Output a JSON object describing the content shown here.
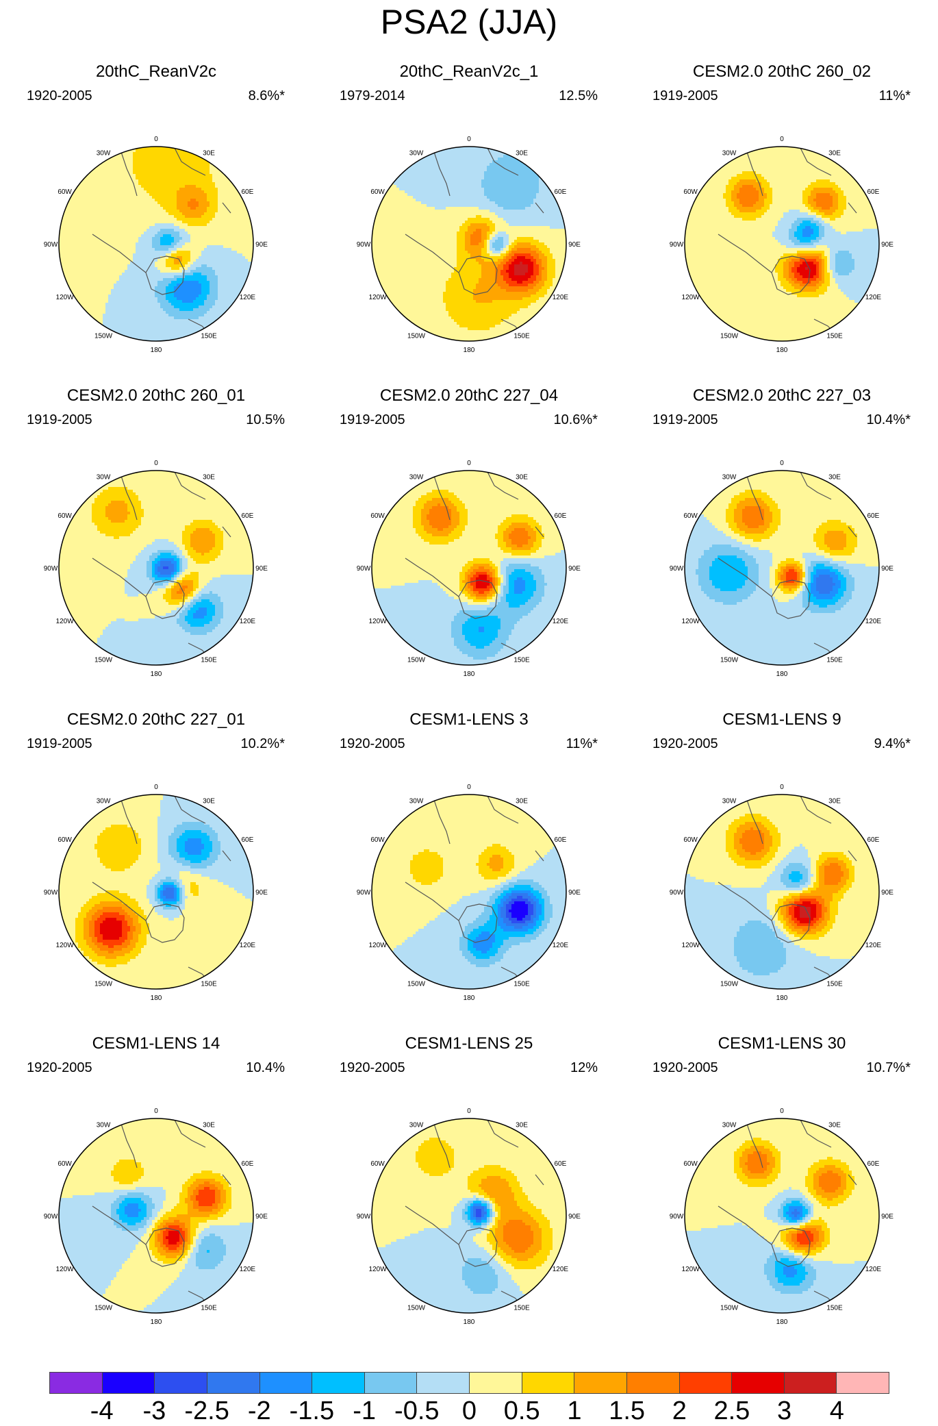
{
  "title": "PSA2 (JJA)",
  "longitude_labels": [
    "0",
    "30E",
    "60E",
    "90E",
    "120E",
    "150E",
    "180",
    "150W",
    "120W",
    "90W",
    "60W",
    "30W"
  ],
  "panels": [
    {
      "title": "20thC_ReanV2c",
      "period": "1920-2005",
      "pct": "8.6%*",
      "blobs": [
        [
          -2.5,
          100,
          0.15,
          0.13
        ],
        [
          3,
          125,
          0.25,
          0.13
        ],
        [
          -2,
          145,
          0.55,
          0.2
        ],
        [
          1.2,
          45,
          0.55,
          0.15
        ],
        [
          0.8,
          10,
          0.85,
          0.4
        ]
      ]
    },
    {
      "title": "20thC_ReanV2c_1",
      "period": "1979-2014",
      "pct": "12.5%",
      "blobs": [
        [
          3,
          115,
          0.6,
          0.18
        ],
        [
          -2.5,
          92,
          0.28,
          0.1
        ],
        [
          2,
          65,
          0.15,
          0.15
        ],
        [
          -1,
          35,
          0.75,
          0.25
        ],
        [
          1,
          170,
          0.55,
          0.3
        ]
      ]
    },
    {
      "title": "CESM2.0 20thC 260_02",
      "period": "1919-2005",
      "pct": "11%*",
      "blobs": [
        [
          3.5,
          130,
          0.35,
          0.17
        ],
        [
          -1.8,
          95,
          0.22,
          0.13
        ],
        [
          2,
          -35,
          0.6,
          0.15
        ],
        [
          2,
          45,
          0.6,
          0.14
        ],
        [
          -1.5,
          60,
          0.35,
          0.12
        ],
        [
          -1.5,
          110,
          0.6,
          0.13
        ]
      ]
    },
    {
      "title": "CESM2.0 20thC 260_01",
      "period": "1919-2005",
      "pct": "10.5%",
      "blobs": [
        [
          -3,
          100,
          0.12,
          0.12
        ],
        [
          2.5,
          130,
          0.35,
          0.14
        ],
        [
          -2,
          135,
          0.6,
          0.16
        ],
        [
          1.5,
          60,
          0.55,
          0.15
        ],
        [
          1.2,
          -35,
          0.7,
          0.2
        ]
      ]
    },
    {
      "title": "CESM2.0 20thC 227_04",
      "period": "1919-2005",
      "pct": "10.6%*",
      "blobs": [
        [
          3.5,
          135,
          0.22,
          0.14
        ],
        [
          -1.8,
          110,
          0.5,
          0.2
        ],
        [
          -1.5,
          170,
          0.65,
          0.2
        ],
        [
          2,
          60,
          0.6,
          0.15
        ],
        [
          2,
          -30,
          0.6,
          0.17
        ]
      ]
    },
    {
      "title": "CESM2.0 20thC 227_03",
      "period": "1919-2005",
      "pct": "10.4%*",
      "blobs": [
        [
          3,
          130,
          0.15,
          0.11
        ],
        [
          -2.5,
          110,
          0.45,
          0.18
        ],
        [
          -1.5,
          -95,
          0.55,
          0.22
        ],
        [
          1.5,
          65,
          0.6,
          0.16
        ],
        [
          2,
          -30,
          0.6,
          0.17
        ]
      ]
    },
    {
      "title": "CESM2.0 20thC 227_01",
      "period": "1919-2005",
      "pct": "10.2%*",
      "blobs": [
        [
          -3,
          95,
          0.15,
          0.1
        ],
        [
          3,
          -130,
          0.6,
          0.2
        ],
        [
          -1.8,
          40,
          0.6,
          0.17
        ],
        [
          1,
          80,
          0.3,
          0.15
        ],
        [
          1,
          -40,
          0.6,
          0.2
        ]
      ]
    },
    {
      "title": "CESM1-LENS 3",
      "period": "1920-2005",
      "pct": "11%*",
      "blobs": [
        [
          -3.5,
          110,
          0.55,
          0.17
        ],
        [
          -1.8,
          165,
          0.55,
          0.15
        ],
        [
          1.2,
          45,
          0.4,
          0.15
        ],
        [
          1,
          -60,
          0.5,
          0.15
        ]
      ]
    },
    {
      "title": "CESM1-LENS 9",
      "period": "1920-2005",
      "pct": "9.4%*",
      "blobs": [
        [
          3.5,
          130,
          0.3,
          0.17
        ],
        [
          -1.8,
          60,
          0.2,
          0.14
        ],
        [
          2,
          -30,
          0.6,
          0.17
        ],
        [
          2,
          70,
          0.55,
          0.14
        ],
        [
          -1,
          -160,
          0.6,
          0.25
        ]
      ]
    },
    {
      "title": "CESM1-LENS 14",
      "period": "1920-2005",
      "pct": "10.4%",
      "blobs": [
        [
          3,
          140,
          0.3,
          0.15
        ],
        [
          -1.8,
          -75,
          0.25,
          0.15
        ],
        [
          2.5,
          70,
          0.55,
          0.15
        ],
        [
          -1.2,
          125,
          0.6,
          0.17
        ],
        [
          1,
          -35,
          0.5,
          0.15
        ]
      ]
    },
    {
      "title": "CESM1-LENS 25",
      "period": "1920-2005",
      "pct": "12%",
      "blobs": [
        [
          -3.5,
          70,
          0.12,
          0.1
        ],
        [
          2,
          115,
          0.55,
          0.22
        ],
        [
          1.5,
          45,
          0.35,
          0.18
        ],
        [
          -1,
          165,
          0.6,
          0.2
        ],
        [
          0.8,
          -30,
          0.7,
          0.2
        ]
      ]
    },
    {
      "title": "CESM1-LENS 30",
      "period": "1920-2005",
      "pct": "10.7%*",
      "blobs": [
        [
          -3,
          90,
          0.15,
          0.11
        ],
        [
          3,
          135,
          0.3,
          0.15
        ],
        [
          2,
          55,
          0.6,
          0.15
        ],
        [
          2,
          -25,
          0.6,
          0.15
        ],
        [
          -1.8,
          170,
          0.55,
          0.17
        ]
      ]
    }
  ],
  "colorbar": {
    "colors": [
      "#8a2be2",
      "#1a00ff",
      "#2d4ff0",
      "#3078ef",
      "#1e90ff",
      "#00bfff",
      "#78c8f0",
      "#b4def5",
      "#fff799",
      "#ffd700",
      "#ffa500",
      "#ff7f00",
      "#ff3f00",
      "#e60000",
      "#cc1f1f",
      "#ffb6b6"
    ],
    "levels": [
      -4,
      -3,
      -2.5,
      -2,
      -1.5,
      -1,
      -0.5,
      0,
      0.5,
      1,
      1.5,
      2,
      2.5,
      3,
      4
    ],
    "labels": [
      "-4",
      "-3",
      "-2.5",
      "-2",
      "-1.5",
      "-1",
      "-0.5",
      "0",
      "0.5",
      "1",
      "1.5",
      "2",
      "2.5",
      "3",
      "4"
    ]
  }
}
